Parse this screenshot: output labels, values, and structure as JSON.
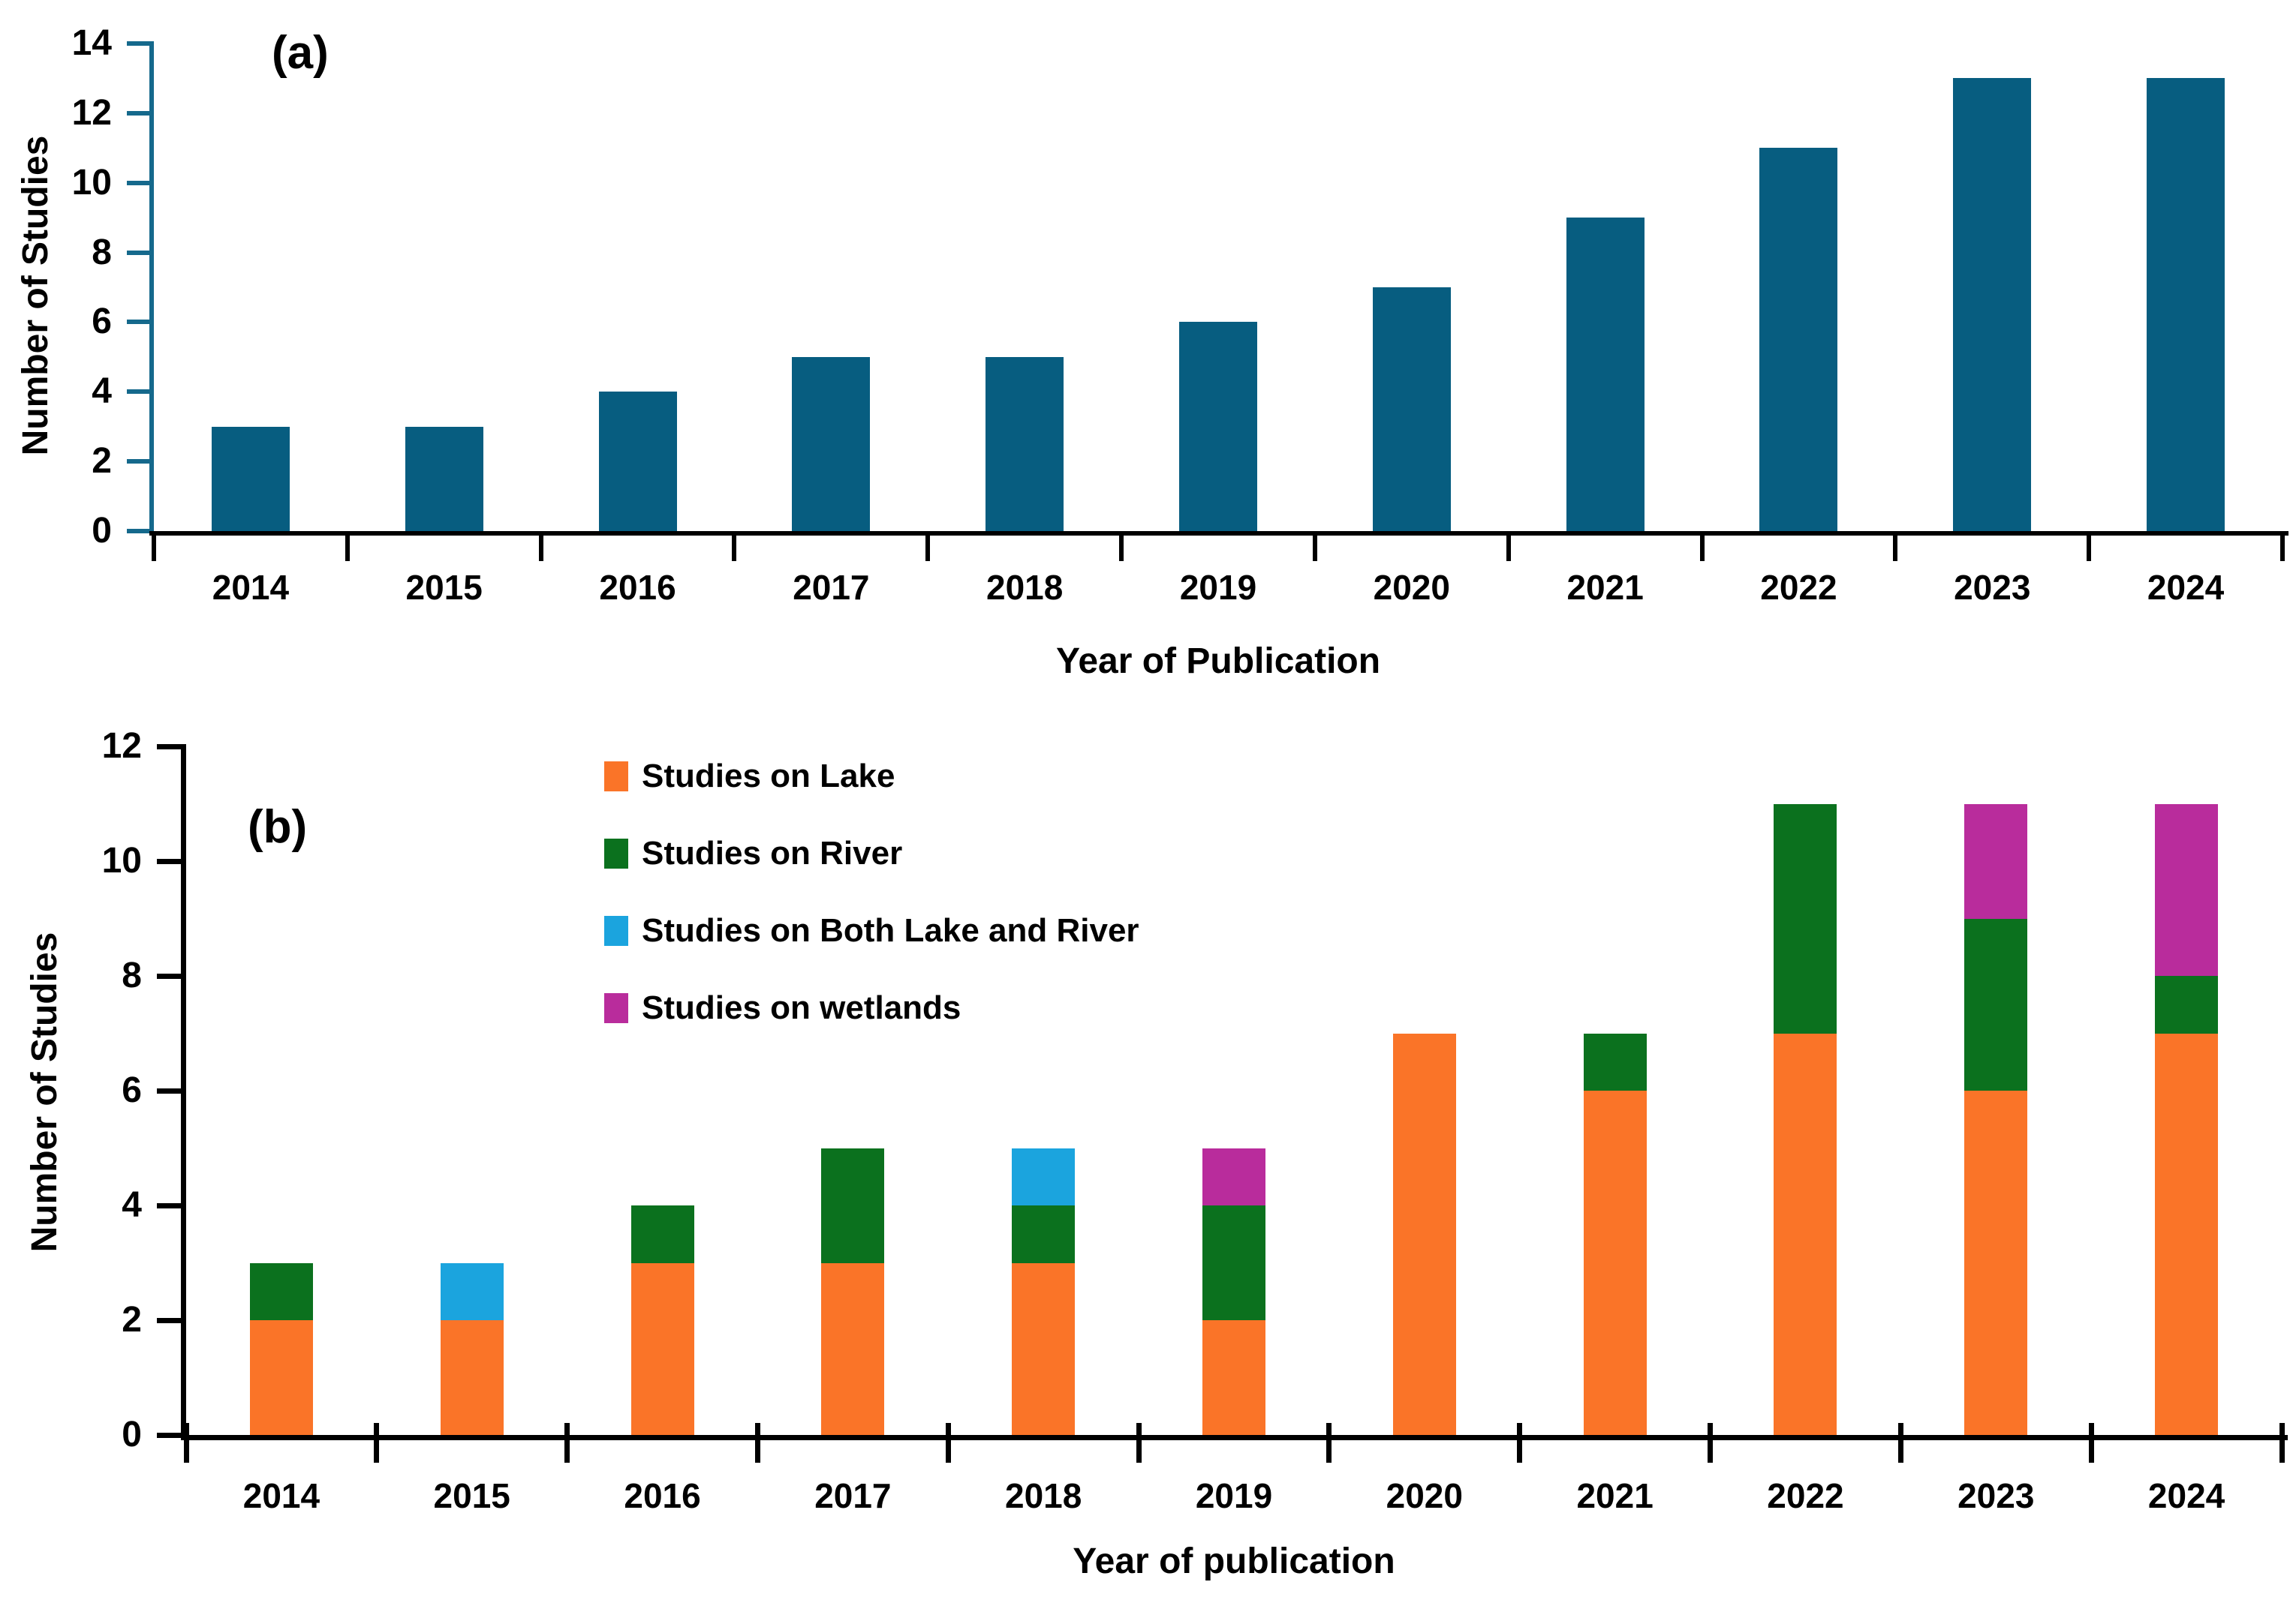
{
  "figure": {
    "background": "#ffffff",
    "text_color": "#000000"
  },
  "chart_data": [
    {
      "panel_label": "(a)",
      "type": "bar",
      "title": "",
      "xlabel": "Year of Publication",
      "ylabel": "Number of Studies",
      "categories": [
        "2014",
        "2015",
        "2016",
        "2017",
        "2018",
        "2019",
        "2020",
        "2021",
        "2022",
        "2023",
        "2024"
      ],
      "values": [
        3,
        3,
        4,
        5,
        5,
        6,
        7,
        9,
        11,
        13,
        13
      ],
      "ylim": [
        0,
        14
      ],
      "ytick_step": 2,
      "yticks": [
        0,
        2,
        4,
        6,
        8,
        10,
        12,
        14
      ],
      "grid": false,
      "legend": null,
      "bar_color": "#075d80",
      "y_axis_color": "#15698c",
      "x_axis_color": "#000000"
    },
    {
      "panel_label": "(b)",
      "type": "stacked-bar",
      "title": "",
      "xlabel": "Year of publication",
      "ylabel": "Number of Studies",
      "categories": [
        "2014",
        "2015",
        "2016",
        "2017",
        "2018",
        "2019",
        "2020",
        "2021",
        "2022",
        "2023",
        "2024"
      ],
      "series": [
        {
          "name": "Studies on Lake",
          "color": "#fa7428",
          "values": [
            2,
            2,
            3,
            3,
            3,
            2,
            7,
            6,
            7,
            6,
            7
          ]
        },
        {
          "name": "Studies on River",
          "color": "#0b711e",
          "values": [
            1,
            0,
            1,
            2,
            1,
            2,
            0,
            1,
            4,
            3,
            1
          ]
        },
        {
          "name": "Studies on Both Lake and River",
          "color": "#1ba4de",
          "values": [
            0,
            1,
            0,
            0,
            1,
            0,
            0,
            0,
            0,
            0,
            0
          ]
        },
        {
          "name": "Studies on wetlands",
          "color": "#b92c9c",
          "values": [
            0,
            0,
            0,
            0,
            0,
            1,
            0,
            0,
            0,
            2,
            3
          ]
        }
      ],
      "totals": [
        3,
        3,
        4,
        5,
        5,
        5,
        7,
        7,
        11,
        11,
        11
      ],
      "ylim": [
        0,
        12
      ],
      "ytick_step": 2,
      "yticks": [
        0,
        2,
        4,
        6,
        8,
        10,
        12
      ],
      "grid": false,
      "legend_position": "inside-upper-left",
      "y_axis_color": "#000000",
      "x_axis_color": "#000000"
    }
  ]
}
